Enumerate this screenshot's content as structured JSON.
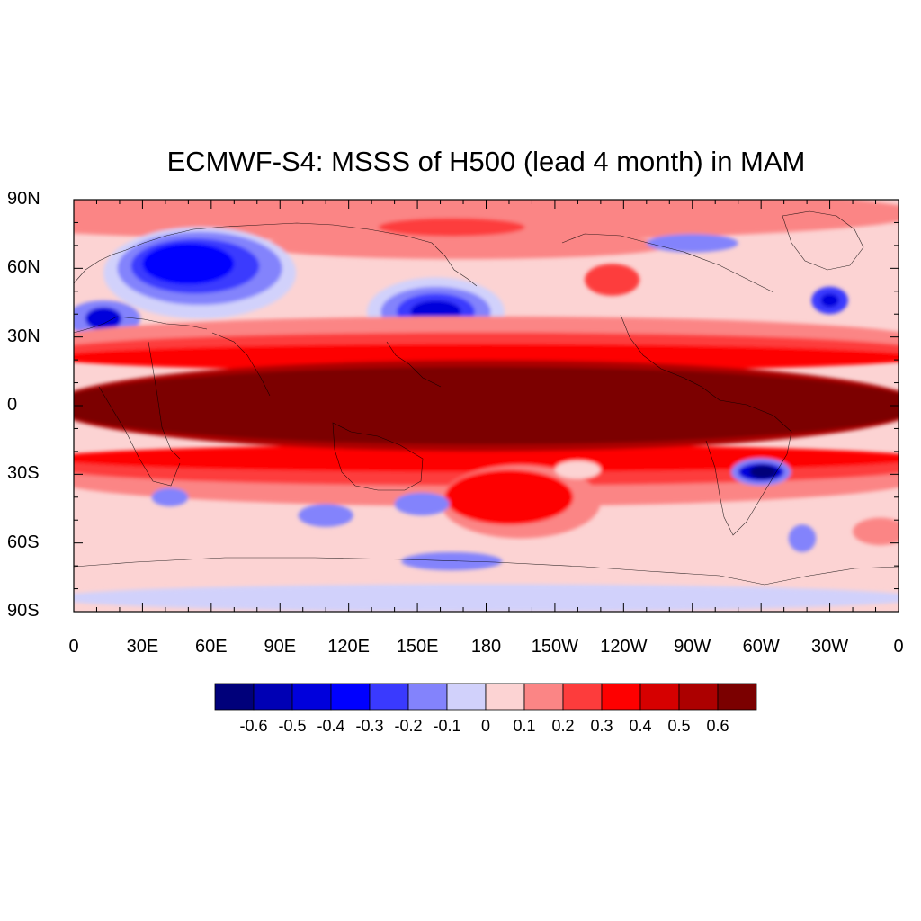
{
  "title": "ECMWF-S4: MSSS of H500 (lead 4 month) in MAM",
  "lat_labels": [
    "90N",
    "60N",
    "30N",
    "0",
    "30S",
    "60S",
    "90S"
  ],
  "lon_labels": [
    "0",
    "30E",
    "60E",
    "90E",
    "120E",
    "150E",
    "180",
    "150W",
    "120W",
    "90W",
    "60W",
    "30W",
    "0"
  ],
  "colorbar": {
    "labels": [
      "-0.6",
      "-0.5",
      "-0.4",
      "-0.3",
      "-0.2",
      "-0.1",
      "0",
      "0.1",
      "0.2",
      "0.3",
      "0.4",
      "0.5",
      "0.6"
    ],
    "colors": [
      "#00007a",
      "#0000b4",
      "#0000dc",
      "#0000ff",
      "#3a3afe",
      "#8383fc",
      "#d1d1fb",
      "#fcd3d3",
      "#fb8585",
      "#fd3c3c",
      "#fe0000",
      "#d60000",
      "#ac0000",
      "#7b0000"
    ]
  },
  "map_data": {
    "projection": "cylindrical-equidistant",
    "lon_range": [
      0,
      360
    ],
    "lat_range": [
      -90,
      90
    ],
    "background_level_color": "#fcd3d3",
    "features": [
      {
        "name": "arctic-red-band-1",
        "lon": 150,
        "lat": 84,
        "rlon": 220,
        "rlat": 12,
        "color": "#fb8585"
      },
      {
        "name": "arctic-band-2",
        "lon": 170,
        "lat": 70,
        "rlon": 90,
        "rlat": 6,
        "color": "#fb8585"
      },
      {
        "name": "north-pacific-arctic-red",
        "lon": 165,
        "lat": 78,
        "rlon": 32,
        "rlat": 4,
        "color": "#fd3c3c"
      },
      {
        "name": "east-europe-low-outer",
        "lon": 55,
        "lat": 58,
        "rlon": 42,
        "rlat": 20,
        "color": "#d1d1fb"
      },
      {
        "name": "east-europe-low-1",
        "lon": 55,
        "lat": 60,
        "rlon": 36,
        "rlat": 16,
        "color": "#8383fc"
      },
      {
        "name": "east-europe-low-2",
        "lon": 53,
        "lat": 61,
        "rlon": 28,
        "rlat": 12,
        "color": "#3a3afe"
      },
      {
        "name": "east-europe-low-3",
        "lon": 50,
        "lat": 62,
        "rlon": 20,
        "rlat": 9,
        "color": "#0000ff"
      },
      {
        "name": "mediterranean-low-1",
        "lon": 13,
        "lat": 38,
        "rlon": 16,
        "rlat": 8,
        "color": "#8383fc"
      },
      {
        "name": "mediterranean-low-2",
        "lon": 13,
        "lat": 38,
        "rlon": 8,
        "rlat": 5,
        "color": "#0000dc"
      },
      {
        "name": "north-pacific-low-outer",
        "lon": 158,
        "lat": 41,
        "rlon": 30,
        "rlat": 15,
        "color": "#d1d1fb"
      },
      {
        "name": "north-pacific-low-1",
        "lon": 158,
        "lat": 41,
        "rlon": 24,
        "rlat": 11,
        "color": "#8383fc"
      },
      {
        "name": "north-pacific-low-2",
        "lon": 158,
        "lat": 41,
        "rlon": 17,
        "rlat": 8,
        "color": "#3a3afe"
      },
      {
        "name": "north-pacific-low-3",
        "lon": 158,
        "lat": 41,
        "rlon": 11,
        "rlat": 5,
        "color": "#0000dc"
      },
      {
        "name": "north-atlantic-low",
        "lon": 330,
        "lat": 46,
        "rlon": 8,
        "rlat": 6,
        "color": "#3a3afe"
      },
      {
        "name": "north-atlantic-low-inner",
        "lon": 330,
        "lat": 46,
        "rlon": 4,
        "rlat": 3,
        "color": "#0000dc"
      },
      {
        "name": "canada-low",
        "lon": 270,
        "lat": 71,
        "rlon": 20,
        "rlat": 4,
        "color": "#8383fc"
      },
      {
        "name": "north-pacific-high",
        "lon": 235,
        "lat": 55,
        "rlon": 12,
        "rlat": 7,
        "color": "#fd3c3c"
      },
      {
        "name": "n-subtropics-1",
        "lon": 180,
        "lat": 29,
        "rlon": 190,
        "rlat": 10,
        "color": "#fb8585"
      },
      {
        "name": "n-subtropics-2",
        "lon": 180,
        "lat": 24,
        "rlon": 190,
        "rlat": 8,
        "color": "#fd3c3c"
      },
      {
        "name": "n-subtropics-3",
        "lon": 180,
        "lat": 21,
        "rlon": 190,
        "rlat": 6,
        "color": "#fe0000"
      },
      {
        "name": "s-subtropics-1",
        "lon": 180,
        "lat": -32,
        "rlon": 190,
        "rlat": 12,
        "color": "#fb8585"
      },
      {
        "name": "s-subtropics-2",
        "lon": 180,
        "lat": -27,
        "rlon": 190,
        "rlat": 8,
        "color": "#fd3c3c"
      },
      {
        "name": "s-subtropics-3",
        "lon": 180,
        "lat": -23,
        "rlon": 190,
        "rlat": 6,
        "color": "#fe0000"
      },
      {
        "name": "south-pacific-red-outer",
        "lon": 195,
        "lat": -42,
        "rlon": 35,
        "rlat": 16,
        "color": "#fb8585"
      },
      {
        "name": "south-pacific-red",
        "lon": 190,
        "lat": -40,
        "rlon": 28,
        "rlat": 12,
        "color": "#fe0000"
      },
      {
        "name": "south-pacific-pink",
        "lon": 220,
        "lat": -28,
        "rlon": 10,
        "rlat": 4,
        "color": "#fcd3d3"
      },
      {
        "name": "tropics-3",
        "lon": 180,
        "lat": 0,
        "rlon": 190,
        "rlat": 20,
        "color": "#ac0000"
      },
      {
        "name": "tropics-4",
        "lon": 180,
        "lat": 0,
        "rlon": 190,
        "rlat": 17,
        "color": "#7b0000"
      },
      {
        "name": "south-america-low-outer",
        "lon": 300,
        "lat": -29,
        "rlon": 13,
        "rlat": 6,
        "color": "#8383fc"
      },
      {
        "name": "south-america-low",
        "lon": 300,
        "lat": -29,
        "rlon": 10,
        "rlat": 4,
        "color": "#0000dc"
      },
      {
        "name": "south-america-low-core",
        "lon": 301,
        "lat": -29,
        "rlon": 6,
        "rlat": 3,
        "color": "#00007a"
      },
      {
        "name": "indian-ocean-low-1",
        "lon": 42,
        "lat": -40,
        "rlon": 8,
        "rlat": 4,
        "color": "#8383fc"
      },
      {
        "name": "south-indian-low",
        "lon": 110,
        "lat": -48,
        "rlon": 12,
        "rlat": 5,
        "color": "#8383fc"
      },
      {
        "name": "tasman-low",
        "lon": 152,
        "lat": -43,
        "rlon": 12,
        "rlat": 5,
        "color": "#8383fc"
      },
      {
        "name": "southern-ocean-low",
        "lon": 165,
        "lat": -68,
        "rlon": 22,
        "rlat": 4,
        "color": "#8383fc"
      },
      {
        "name": "drake-low",
        "lon": 318,
        "lat": -58,
        "rlon": 6,
        "rlat": 6,
        "color": "#8383fc"
      },
      {
        "name": "south-atlantic-red",
        "lon": 352,
        "lat": -55,
        "rlon": 12,
        "rlat": 6,
        "color": "#fb8585"
      },
      {
        "name": "antarctic-blue",
        "lon": 180,
        "lat": -84,
        "rlon": 190,
        "rlat": 6,
        "color": "#d1d1fb"
      }
    ]
  }
}
